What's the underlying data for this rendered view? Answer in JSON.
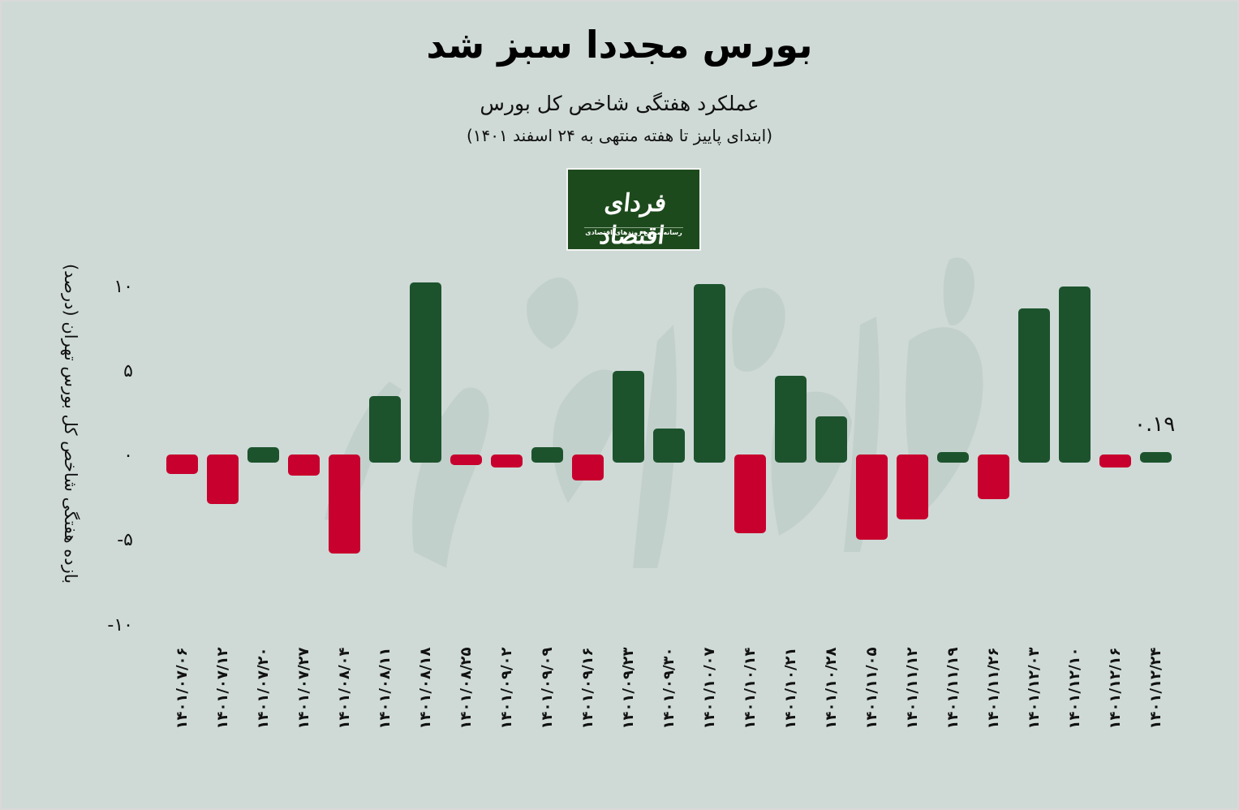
{
  "header": {
    "title": "بورس مجددا سبز شد",
    "subtitle": "عملکرد هفتگی شاخص کل بورس",
    "subtitle_range": "(ابتدای پاییز تا هفته منتهی به ۲۴ اسفند ۱۴۰۱)"
  },
  "logo": {
    "name": "فردای اقتصاد",
    "tagline": "رسانه مرجع روندهای اقتصادی"
  },
  "watermark": "فردای اقتصاد",
  "colors": {
    "background": "#cfdad7",
    "positive": "#1c532d",
    "negative": "#c8002e",
    "logo_bg": "#1d4a1d"
  },
  "axis": {
    "y_title": "بازده هفتگی شاخص کل بورس تهران (درصد)",
    "y_ticks": [
      {
        "label": "۱۰",
        "value": 10
      },
      {
        "label": "۵",
        "value": 5
      },
      {
        "label": "۰",
        "value": 0
      },
      {
        "label": "-۵",
        "value": -5
      },
      {
        "label": "-۱۰",
        "value": -10
      }
    ]
  },
  "annotation": {
    "last_value_label": "۰.۱۹"
  },
  "chart_data": {
    "type": "bar",
    "title": "بورس مجددا سبز شد",
    "subtitle": "عملکرد هفتگی شاخص کل بورس (ابتدای پاییز تا هفته منتهی به ۲۴ اسفند ۱۴۰۱)",
    "xlabel": "",
    "ylabel": "بازده هفتگی شاخص کل بورس تهران (درصد)",
    "ylim": [
      -10,
      10
    ],
    "yticks": [
      10,
      5,
      0,
      -5,
      -10
    ],
    "grid": false,
    "legend": null,
    "categories": [
      "۱۴۰۱/۰۷/۰۶",
      "۱۴۰۱/۰۷/۱۲",
      "۱۴۰۱/۰۷/۲۰",
      "۱۴۰۱/۰۷/۲۷",
      "۱۴۰۱/۰۸/۰۴",
      "۱۴۰۱/۰۸/۱۱",
      "۱۴۰۱/۰۸/۱۸",
      "۱۴۰۱/۰۸/۲۵",
      "۱۴۰۱/۰۹/۰۲",
      "۱۴۰۱/۰۹/۰۹",
      "۱۴۰۱/۰۹/۱۶",
      "۱۴۰۱/۰۹/۲۳",
      "۱۴۰۱/۰۹/۳۰",
      "۱۴۰۱/۱۰/۰۷",
      "۱۴۰۱/۱۰/۱۴",
      "۱۴۰۱/۱۰/۲۱",
      "۱۴۰۱/۱۰/۲۸",
      "۱۴۰۱/۱۱/۰۵",
      "۱۴۰۱/۱۱/۱۲",
      "۱۴۰۱/۱۱/۱۹",
      "۱۴۰۱/۱۱/۲۶",
      "۱۴۰۱/۱۲/۰۳",
      "۱۴۰۱/۱۲/۱۰",
      "۱۴۰۱/۱۲/۱۶",
      "۱۴۰۱/۱۲/۲۴"
    ],
    "values": [
      -1.1,
      -2.9,
      0.5,
      -1.2,
      -5.8,
      3.5,
      10.2,
      -0.5,
      -0.7,
      0.5,
      -1.5,
      5.0,
      1.6,
      10.1,
      -4.6,
      4.7,
      2.3,
      -5.0,
      -3.8,
      0.1,
      -2.6,
      8.7,
      10.0,
      -0.7,
      0.19
    ],
    "annotations": [
      {
        "index": 24,
        "text": "۰.۱۹"
      }
    ]
  }
}
